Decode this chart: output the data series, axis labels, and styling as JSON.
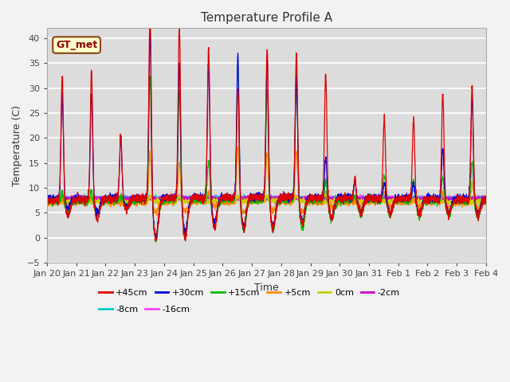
{
  "title": "Temperature Profile A",
  "xlabel": "Time",
  "ylabel": "Temperature (C)",
  "ylim": [
    -5,
    42
  ],
  "yticks": [
    -5,
    0,
    5,
    10,
    15,
    20,
    25,
    30,
    35,
    40
  ],
  "n_points": 3000,
  "series": {
    "+45cm": {
      "color": "#dd0000",
      "lw": 0.9
    },
    "+30cm": {
      "color": "#0000dd",
      "lw": 0.8
    },
    "+15cm": {
      "color": "#00bb00",
      "lw": 0.8
    },
    "+5cm": {
      "color": "#ff8800",
      "lw": 0.8
    },
    "0cm": {
      "color": "#cccc00",
      "lw": 0.8
    },
    "-2cm": {
      "color": "#cc00cc",
      "lw": 0.8
    },
    "-8cm": {
      "color": "#00cccc",
      "lw": 0.8
    },
    "-16cm": {
      "color": "#ff44ff",
      "lw": 0.8
    }
  },
  "xtick_labels": [
    "Jan 20",
    "Jan 21",
    "Jan 22",
    "Jan 23",
    "Jan 24",
    "Jan 25",
    "Jan 26",
    "Jan 27",
    "Jan 28",
    "Jan 29",
    "Jan 30",
    "Jan 31",
    "Feb 1",
    "Feb 2",
    "Feb 3",
    "Feb 4"
  ],
  "annotation_text": "GT_met",
  "bg_color": "#dcdcdc",
  "grid_color": "#ffffff",
  "title_fontsize": 11,
  "label_fontsize": 9,
  "tick_fontsize": 8
}
